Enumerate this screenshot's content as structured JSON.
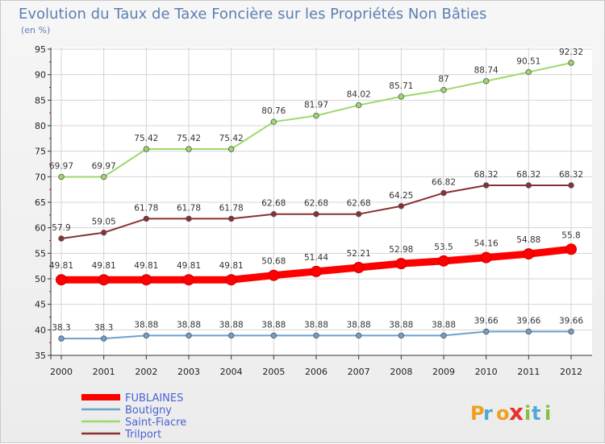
{
  "chart_data": {
    "type": "line",
    "title": "Evolution du Taux de Taxe Foncière sur les Propriétés Non Bâties",
    "subtitle": "(en %)",
    "x": [
      "2000",
      "2001",
      "2002",
      "2003",
      "2004",
      "2005",
      "2006",
      "2007",
      "2008",
      "2009",
      "2010",
      "2011",
      "2012"
    ],
    "ylim": [
      35,
      95
    ],
    "yticks": [
      35,
      40,
      45,
      50,
      55,
      60,
      65,
      70,
      75,
      80,
      85,
      90,
      95
    ],
    "grid": true,
    "legend_position": "bottom-left",
    "series": [
      {
        "name": "FUBLAINES",
        "color": "#ff0000",
        "values": [
          49.81,
          49.81,
          49.81,
          49.81,
          49.81,
          50.68,
          51.44,
          52.21,
          52.98,
          53.5,
          54.16,
          54.88,
          55.8
        ],
        "labels": [
          "49.81",
          "49.81",
          "49.81",
          "49.81",
          "49.81",
          "50.68",
          "51.44",
          "52.21",
          "52.98",
          "53.5",
          "54.16",
          "54.88",
          "55.8"
        ]
      },
      {
        "name": "Boutigny",
        "color": "#6fa0cc",
        "values": [
          38.3,
          38.3,
          38.88,
          38.88,
          38.88,
          38.88,
          38.88,
          38.88,
          38.88,
          38.88,
          39.66,
          39.66,
          39.66
        ],
        "labels": [
          "38.3",
          "38.3",
          "38.88",
          "38.88",
          "38.88",
          "38.88",
          "38.88",
          "38.88",
          "38.88",
          "38.88",
          "39.66",
          "39.66",
          "39.66"
        ]
      },
      {
        "name": "Saint-Fiacre",
        "color": "#9ed86a",
        "values": [
          69.97,
          69.97,
          75.42,
          75.42,
          75.42,
          80.76,
          81.97,
          84.02,
          85.71,
          87,
          88.74,
          90.51,
          92.32
        ],
        "labels": [
          "69.97",
          "69.97",
          "75.42",
          "75.42",
          "75.42",
          "80.76",
          "81.97",
          "84.02",
          "85.71",
          "87",
          "88.74",
          "90.51",
          "92.32"
        ]
      },
      {
        "name": "Trilport",
        "color": "#8a3030",
        "values": [
          57.9,
          59.05,
          61.78,
          61.78,
          61.78,
          62.68,
          62.68,
          62.68,
          64.25,
          66.82,
          68.32,
          68.32,
          68.32
        ],
        "labels": [
          "57.9",
          "59.05",
          "61.78",
          "61.78",
          "61.78",
          "62.68",
          "62.68",
          "62.68",
          "64.25",
          "66.82",
          "68.32",
          "68.32",
          "68.32"
        ]
      }
    ]
  },
  "logo": {
    "text": "Proxiti",
    "letters": [
      "P",
      "r",
      "o",
      "x",
      "i",
      "t",
      "i"
    ],
    "colors": [
      "#f0a020",
      "#4fa8d8",
      "#f0a020",
      "#e83030",
      "#86c040",
      "#4fa8d8",
      "#86c040"
    ]
  }
}
